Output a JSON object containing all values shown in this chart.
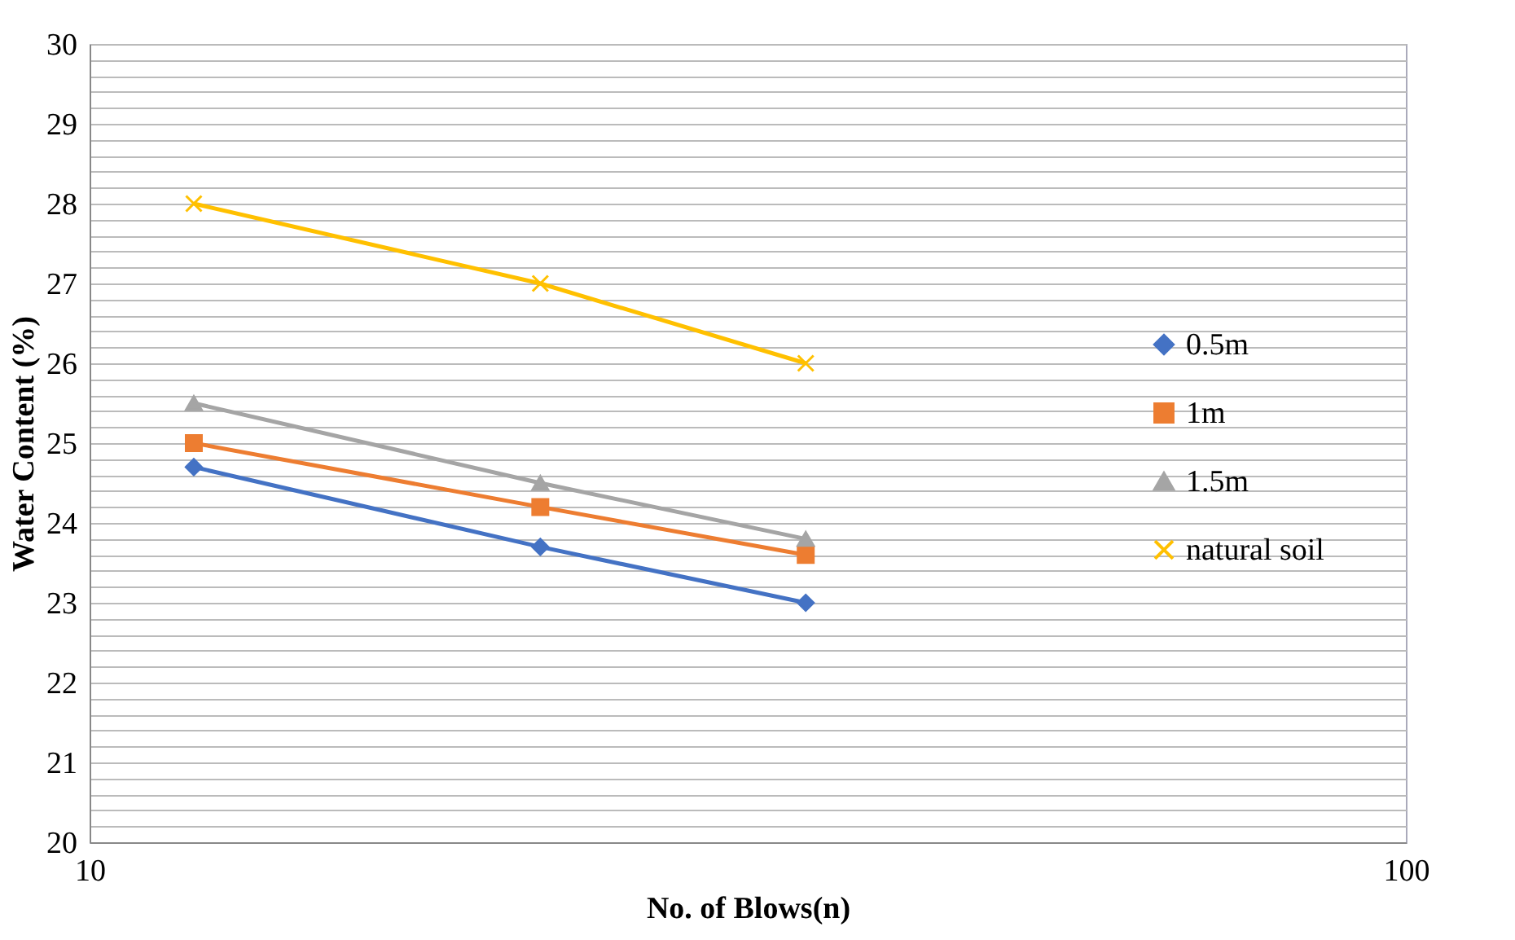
{
  "chart_data": {
    "type": "line",
    "xlabel": "No. of Blows(n)",
    "ylabel": "Water Content (%)",
    "x": [
      12,
      22,
      35
    ],
    "log": "x",
    "xlim": [
      10,
      100
    ],
    "xticks": [
      10,
      100
    ],
    "ylim": [
      20,
      30
    ],
    "yticks": [
      20,
      {
        "value": 20.2,
        "label": null
      },
      {
        "value": 20.4,
        "label": null
      },
      {
        "value": 20.6,
        "label": null
      },
      {
        "value": 20.8,
        "label": null
      },
      21,
      {
        "value": 21.2,
        "label": null
      },
      {
        "value": 21.4,
        "label": null
      },
      {
        "value": 21.6,
        "label": null
      },
      {
        "value": 21.8,
        "label": null
      },
      22,
      {
        "value": 22.2,
        "label": null
      },
      {
        "value": 22.4,
        "label": null
      },
      {
        "value": 22.6,
        "label": null
      },
      {
        "value": 22.8,
        "label": null
      },
      23,
      {
        "value": 23.2,
        "label": null
      },
      {
        "value": 23.4,
        "label": null
      },
      {
        "value": 23.6,
        "label": null
      },
      {
        "value": 23.8,
        "label": null
      },
      24,
      {
        "value": 24.2,
        "label": null
      },
      {
        "value": 24.4,
        "label": null
      },
      {
        "value": 24.6,
        "label": null
      },
      {
        "value": 24.8,
        "label": null
      },
      25,
      {
        "value": 25.2,
        "label": null
      },
      {
        "value": 25.4,
        "label": null
      },
      {
        "value": 25.6,
        "label": null
      },
      {
        "value": 25.8,
        "label": null
      },
      26,
      {
        "value": 26.2,
        "label": null
      },
      {
        "value": 26.4,
        "label": null
      },
      {
        "value": 26.6,
        "label": null
      },
      {
        "value": 26.8,
        "label": null
      },
      27,
      {
        "value": 27.2,
        "label": null
      },
      {
        "value": 27.4,
        "label": null
      },
      {
        "value": 27.6,
        "label": null
      },
      {
        "value": 27.8,
        "label": null
      },
      28,
      {
        "value": 28.2,
        "label": null
      },
      {
        "value": 28.4,
        "label": null
      },
      {
        "value": 28.6,
        "label": null
      },
      {
        "value": 28.8,
        "label": null
      },
      29,
      {
        "value": 29.2,
        "label": null
      },
      {
        "value": 29.4,
        "label": null
      },
      {
        "value": 29.6,
        "label": null
      },
      {
        "value": 29.8,
        "label": null
      },
      30
    ],
    "grid": "y",
    "legend": "right",
    "line_style": "solid",
    "series": [
      {
        "name": "0.5m",
        "color": "#4472c4",
        "marker": "diamond",
        "values": [
          24.7,
          23.7,
          23.0
        ]
      },
      {
        "name": "1m",
        "color": "#ed7d31",
        "marker": "square",
        "values": [
          25.0,
          24.2,
          23.6
        ]
      },
      {
        "name": "1.5m",
        "color": "#a5a5a5",
        "marker": "triangle",
        "values": [
          25.5,
          24.5,
          23.8
        ]
      },
      {
        "name": "natural soil",
        "color": "#ffc000",
        "marker": "cross",
        "values": [
          28,
          27,
          26
        ]
      }
    ]
  }
}
